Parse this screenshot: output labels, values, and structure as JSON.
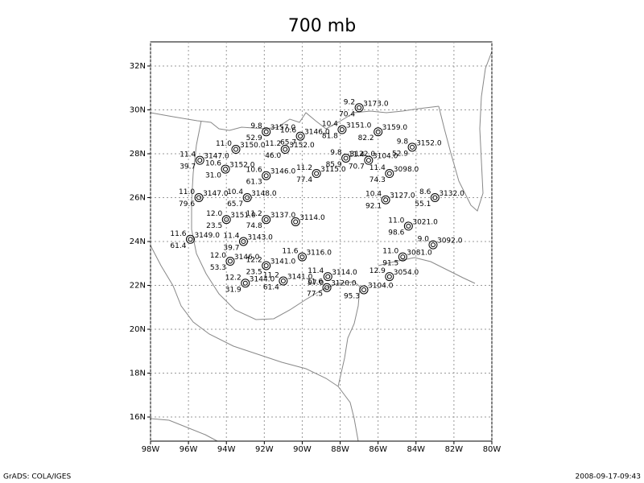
{
  "map": {
    "title": "700 mb",
    "footer_left": "GrADS: COLA/IGES",
    "footer_right": "2008-09-17-09:43",
    "lon_range": [
      -98,
      -80
    ],
    "lat_range": [
      14.9,
      33.1
    ],
    "lon_ticks": [
      {
        "value": -98,
        "label": "98W"
      },
      {
        "value": -96,
        "label": "96W"
      },
      {
        "value": -94,
        "label": "94W"
      },
      {
        "value": -92,
        "label": "92W"
      },
      {
        "value": -90,
        "label": "90W"
      },
      {
        "value": -88,
        "label": "88W"
      },
      {
        "value": -86,
        "label": "86W"
      },
      {
        "value": -84,
        "label": "84W"
      },
      {
        "value": -82,
        "label": "82W"
      },
      {
        "value": -80,
        "label": "80W"
      }
    ],
    "lat_ticks": [
      {
        "value": 16,
        "label": "16N"
      },
      {
        "value": 18,
        "label": "18N"
      },
      {
        "value": 20,
        "label": "20N"
      },
      {
        "value": 22,
        "label": "22N"
      },
      {
        "value": 24,
        "label": "24N"
      },
      {
        "value": 26,
        "label": "26N"
      },
      {
        "value": 28,
        "label": "28N"
      },
      {
        "value": 30,
        "label": "30N"
      },
      {
        "value": 32,
        "label": "32N"
      }
    ],
    "stations": [
      {
        "lon": -87.0,
        "lat": 30.1,
        "t": "9.2",
        "h": "70.4",
        "z": "3173.0"
      },
      {
        "lon": -91.9,
        "lat": 29.0,
        "t": "9.8",
        "h": "52.9",
        "z": "3157.0"
      },
      {
        "lon": -90.1,
        "lat": 28.8,
        "t": "10.6",
        "h": "65.7",
        "z": "3146.0"
      },
      {
        "lon": -87.9,
        "lat": 29.1,
        "t": "10.4",
        "h": "81.8",
        "z": "3151.0"
      },
      {
        "lon": -86.0,
        "lat": 29.0,
        "h": "82.2",
        "z": "3159.0"
      },
      {
        "lon": -84.2,
        "lat": 28.3,
        "t": "9.8",
        "h": "52.9",
        "z": "3152.0"
      },
      {
        "lon": -93.5,
        "lat": 28.2,
        "t": "11.0",
        "z": "3150.0"
      },
      {
        "lon": -90.9,
        "lat": 28.2,
        "t": "11.2",
        "h": "46.0",
        "z": "3152.0"
      },
      {
        "lon": -95.4,
        "lat": 27.7,
        "t": "11.4",
        "h": "39.7",
        "z": "3147.0"
      },
      {
        "lon": -94.05,
        "lat": 27.3,
        "t": "10.6",
        "h": "31.0",
        "z": "3152.0"
      },
      {
        "lon": -91.9,
        "lat": 27.0,
        "t": "10.6",
        "h": "61.3",
        "z": "3146.0"
      },
      {
        "lon": -89.25,
        "lat": 27.1,
        "t": "11.2",
        "h": "77.4",
        "z": "3115.0"
      },
      {
        "lon": -87.7,
        "lat": 27.8,
        "t": "9.8",
        "h": "85.9",
        "z": "3122.0"
      },
      {
        "lon": -86.5,
        "lat": 27.7,
        "t": "11.4",
        "h": "70.7",
        "z": "3104.0"
      },
      {
        "lon": -85.4,
        "lat": 27.1,
        "t": "11.4",
        "h": "74.3",
        "z": "3098.0"
      },
      {
        "lon": -95.45,
        "lat": 26.0,
        "t": "11.0",
        "h": "79.6",
        "z": "3147.0"
      },
      {
        "lon": -92.9,
        "lat": 26.0,
        "t": "10.4",
        "h": "65.7",
        "z": "3148.0"
      },
      {
        "lon": -85.6,
        "lat": 25.9,
        "t": "10.4",
        "h": "92.1",
        "z": "3127.0"
      },
      {
        "lon": -83.0,
        "lat": 26.0,
        "t": "8.6",
        "h": "55.1",
        "z": "3132.0"
      },
      {
        "lon": -94.0,
        "lat": 25.0,
        "t": "12.0",
        "h": "23.5",
        "z": "3151.0"
      },
      {
        "lon": -91.9,
        "lat": 25.0,
        "t": "11.2",
        "h": "74.8",
        "z": "3137.0"
      },
      {
        "lon": -90.35,
        "lat": 24.9,
        "z": "3114.0"
      },
      {
        "lon": -84.4,
        "lat": 24.7,
        "t": "11.0",
        "h": "98.6",
        "z": "3021.0"
      },
      {
        "lon": -95.9,
        "lat": 24.1,
        "t": "11.6",
        "h": "61.4",
        "z": "3149.0"
      },
      {
        "lon": -93.1,
        "lat": 24.0,
        "t": "11.4",
        "h": "39.7",
        "z": "3143.0"
      },
      {
        "lon": -83.1,
        "lat": 23.85,
        "t": "9.0",
        "z": "3092.0"
      },
      {
        "lon": -93.8,
        "lat": 23.1,
        "t": "12.0",
        "h": "53.3",
        "z": "3146.0"
      },
      {
        "lon": -91.9,
        "lat": 22.9,
        "t": "12.2",
        "h": "23.5",
        "z": "3141.0"
      },
      {
        "lon": -90.0,
        "lat": 23.3,
        "t": "11.6",
        "z": "3116.0"
      },
      {
        "lon": -84.7,
        "lat": 23.3,
        "t": "11.0",
        "h": "91.5",
        "z": "3081.0"
      },
      {
        "lon": -93.0,
        "lat": 22.1,
        "t": "12.2",
        "h": "31.9",
        "z": "3144.0"
      },
      {
        "lon": -91.0,
        "lat": 22.2,
        "t": "11.2",
        "h": "61.4",
        "z": "3141.0"
      },
      {
        "lon": -88.65,
        "lat": 22.4,
        "t": "11.4",
        "h": "97.0",
        "z": "3114.0"
      },
      {
        "lon": -88.7,
        "lat": 21.9,
        "t": "11.6",
        "h": "77.5",
        "z": "3120.0"
      },
      {
        "lon": -86.75,
        "lat": 21.8,
        "h": "95.3",
        "z": "3104.0"
      },
      {
        "lon": -85.4,
        "lat": 22.4,
        "t": "12.9",
        "z": "3054.0"
      }
    ]
  }
}
